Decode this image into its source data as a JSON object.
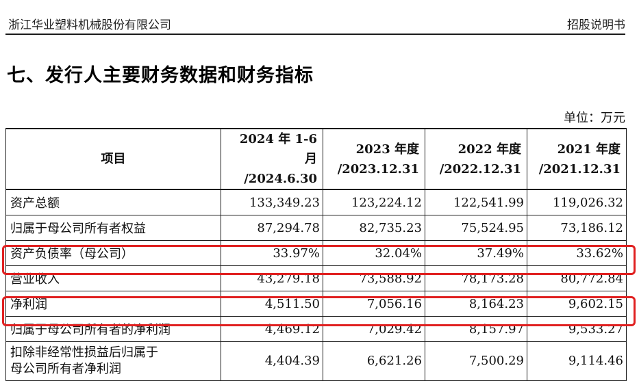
{
  "header": {
    "company": "浙江华业塑料机械股份有限公司",
    "doc_type": "招股说明书"
  },
  "section_title": "七、发行人主要财务数据和财务指标",
  "unit": "单位：万元",
  "table": {
    "col_item": "项目",
    "columns": [
      {
        "line1": "2024 年 1-6 月",
        "line2": "/2024.6.30"
      },
      {
        "line1": "2023 年度",
        "line2": "/2023.12.31"
      },
      {
        "line1": "2022 年度",
        "line2": "/2022.12.31"
      },
      {
        "line1": "2021 年度",
        "line2": "/2021.12.31"
      }
    ],
    "rows": [
      {
        "label": "资产总额",
        "values": [
          "133,349.23",
          "123,224.12",
          "122,541.99",
          "119,026.32"
        ]
      },
      {
        "label": "归属于母公司所有者权益",
        "values": [
          "87,294.78",
          "82,735.23",
          "75,524.95",
          "73,186.12"
        ]
      },
      {
        "label": "资产负债率（母公司）",
        "values": [
          "33.97%",
          "32.04%",
          "37.49%",
          "33.62%"
        ]
      },
      {
        "label": "营业收入",
        "values": [
          "43,279.18",
          "73,588.92",
          "78,173.28",
          "80,772.84"
        ]
      },
      {
        "label": "净利润",
        "values": [
          "4,511.50",
          "7,056.16",
          "8,164.23",
          "9,602.15"
        ]
      },
      {
        "label": "归属于母公司所有者的净利润",
        "values": [
          "4,469.12",
          "7,029.42",
          "8,157.97",
          "9,533.27"
        ]
      },
      {
        "label_line1": "扣除非经常性损益后归属于",
        "label_line2": "母公司所有者净利润",
        "values": [
          "4,404.39",
          "6,621.26",
          "7,500.29",
          "9,114.46"
        ]
      }
    ]
  },
  "highlight_color": "#e02020"
}
